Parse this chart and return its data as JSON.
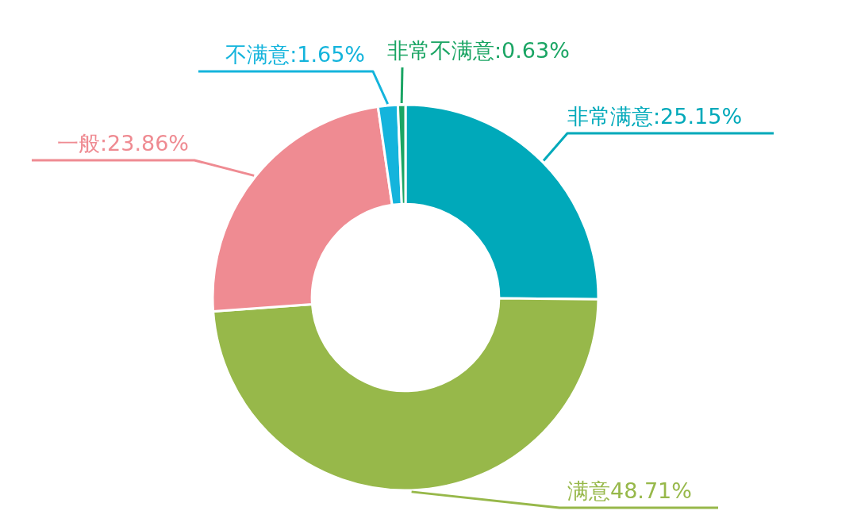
{
  "chart_data": {
    "type": "donut",
    "categories": [
      "非常满意",
      "满意",
      "一般",
      "不满意",
      "非常不满意"
    ],
    "values": [
      25.15,
      48.71,
      23.86,
      1.65,
      0.63
    ],
    "colors": [
      "#00a9ba",
      "#97b84a",
      "#ef8b92",
      "#14b4dc",
      "#1ba564"
    ],
    "value_labels": [
      ":25.15%",
      "48.71%",
      ":23.86%",
      ":1.65%",
      ":0.63%"
    ]
  }
}
